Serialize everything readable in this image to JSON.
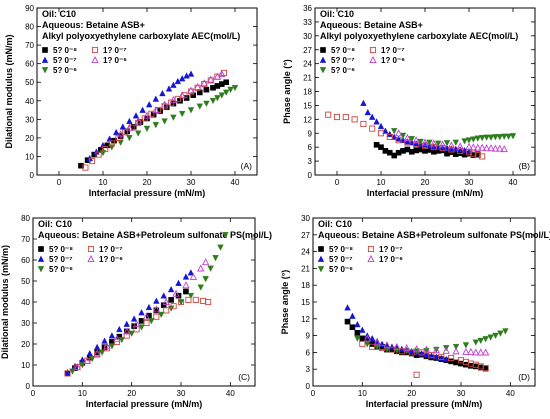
{
  "figure": {
    "colors": {
      "black": "#000000",
      "blue": "#1515d6",
      "green": "#2e7d1c",
      "red": "#d0453f",
      "magenta": "#c040d0"
    }
  },
  "chart_data": [
    {
      "type": "scatter",
      "panel_id": "(A)",
      "xlabel": "Interfacial pressure (mN/m)",
      "ylabel": "Dilational modulus (mN/m)",
      "xlim": [
        -5,
        45
      ],
      "ylim": [
        0,
        90
      ],
      "xticks": [
        0,
        10,
        20,
        30,
        40
      ],
      "yticks": [
        0,
        10,
        20,
        30,
        40,
        50,
        60,
        70,
        80,
        90
      ],
      "annotations": [
        "Oil:  C10",
        "Aqueous: Betaine ASB+",
        "Alkyl polyoxyethylene carboxylate AEC(mol/L)"
      ],
      "legend_placement": "top-left",
      "series": [
        {
          "name": "5? 0⁻⁸",
          "marker": "square",
          "filled": true,
          "color": "#000000",
          "x": [
            5,
            6.5,
            8,
            9.5,
            11,
            12.5,
            14,
            15.5,
            17,
            18.5,
            20,
            21.5,
            23,
            24.5,
            26,
            27.5,
            29,
            30.5,
            32,
            33.5,
            35,
            36,
            37,
            38
          ],
          "y": [
            5,
            8,
            11,
            13.5,
            16,
            18.5,
            21,
            23.5,
            26,
            28.5,
            30.5,
            32.5,
            34.5,
            36.5,
            38.5,
            40,
            41.5,
            43,
            44.5,
            46,
            47,
            48,
            49,
            50
          ]
        },
        {
          "name": "5? 0⁻⁷",
          "marker": "triangle-up",
          "filled": true,
          "color": "#1515d6",
          "x": [
            7,
            8.5,
            10,
            11.5,
            13,
            14.5,
            16,
            17.5,
            19,
            20.5,
            22,
            23.5,
            25,
            26,
            27,
            28,
            29,
            30
          ],
          "y": [
            9,
            12.5,
            16,
            19.5,
            23,
            26,
            29,
            32,
            35,
            38,
            41,
            44,
            46.5,
            48.5,
            50.5,
            52,
            53.5,
            54.5
          ]
        },
        {
          "name": "5? 0⁻⁶",
          "marker": "triangle-down",
          "filled": true,
          "color": "#2e7d1c",
          "x": [
            10,
            12,
            14,
            16,
            18,
            20,
            22,
            24,
            26,
            28,
            30,
            32,
            33.5,
            35,
            36,
            37,
            38,
            39,
            40
          ],
          "y": [
            12,
            15,
            17.5,
            20,
            22.5,
            25,
            27,
            29,
            31,
            33,
            35,
            37,
            38.5,
            40,
            41.5,
            43,
            44.5,
            46,
            47
          ]
        },
        {
          "name": "1? 0⁻⁷",
          "marker": "square",
          "filled": false,
          "color": "#d0453f",
          "x": [
            6,
            7.5,
            9,
            10.5,
            12,
            13.5,
            15,
            16.5,
            18,
            19.5,
            21,
            22.5,
            24,
            25.5,
            27,
            28.5,
            30,
            31.5,
            33,
            34.5,
            36,
            37.5
          ],
          "y": [
            4,
            7.5,
            11,
            14,
            17,
            20,
            23,
            25.5,
            28,
            30.5,
            33,
            35,
            37,
            39,
            41,
            43,
            45,
            47,
            49,
            51,
            53,
            55
          ]
        },
        {
          "name": "1? 0⁻⁶",
          "marker": "triangle-up",
          "filled": false,
          "color": "#c040d0",
          "x": [
            14,
            16,
            18,
            20,
            22,
            24,
            26,
            28,
            30,
            31.5,
            33,
            34.5,
            36,
            37
          ],
          "y": [
            22,
            25.5,
            29,
            32,
            35,
            38,
            40.5,
            43,
            45.5,
            47.5,
            49.5,
            51.5,
            53,
            54.5
          ]
        }
      ]
    },
    {
      "type": "scatter",
      "panel_id": "(B)",
      "xlabel": "Interfacial pressure (mN/m)",
      "ylabel": "Phase angle (°)",
      "xlim": [
        -5,
        45
      ],
      "ylim": [
        0,
        36
      ],
      "xticks": [
        0,
        10,
        20,
        30,
        40
      ],
      "yticks": [
        0,
        3,
        6,
        9,
        12,
        15,
        18,
        21,
        24,
        27,
        30,
        33,
        36
      ],
      "annotations": [
        "Oil:  C10",
        "Aqueous: Betaine ASB+",
        "Alkyl polyoxyethylene carboxylate AEC(mol/L)"
      ],
      "legend_placement": "top-left",
      "series": [
        {
          "name": "5? 0⁻⁸",
          "marker": "square",
          "filled": true,
          "color": "#000000",
          "x": [
            9,
            10,
            11,
            12,
            13,
            14,
            15,
            16,
            17,
            18,
            19,
            20,
            21,
            22,
            23,
            24,
            25,
            26,
            27,
            28,
            29,
            30,
            31,
            32
          ],
          "y": [
            6.5,
            6,
            5.2,
            4.8,
            4.2,
            4.8,
            5.2,
            5.5,
            5,
            5.3,
            5.5,
            5.2,
            5.4,
            5,
            5.2,
            5.3,
            4.6,
            4.9,
            4.5,
            4.7,
            4.4,
            4.6,
            4.3,
            4.5
          ]
        },
        {
          "name": "5? 0⁻⁷",
          "marker": "triangle-up",
          "filled": true,
          "color": "#1515d6",
          "x": [
            6,
            7,
            8,
            9,
            10,
            11,
            12,
            13,
            14,
            15,
            16,
            17,
            18,
            19,
            20,
            21,
            22,
            23,
            24,
            25,
            26,
            27,
            28,
            29,
            30
          ],
          "y": [
            15.5,
            13.5,
            12.5,
            11.5,
            10.5,
            9.5,
            8.8,
            8.2,
            7.8,
            7.5,
            7.2,
            7,
            6.8,
            6.6,
            6.5,
            6.3,
            6.2,
            6,
            5.9,
            5.8,
            5.7,
            5.6,
            5.5,
            5.3,
            5.1
          ]
        },
        {
          "name": "5? 0⁻⁶",
          "marker": "triangle-down",
          "filled": true,
          "color": "#2e7d1c",
          "x": [
            13,
            15,
            17,
            19,
            21,
            23,
            25,
            27,
            29,
            30,
            31,
            32,
            33,
            34,
            35,
            36,
            37,
            38,
            39,
            40
          ],
          "y": [
            9.5,
            8.5,
            7.8,
            7.2,
            7,
            6.8,
            6.9,
            7,
            7.3,
            7.5,
            7.7,
            7.9,
            8,
            8.1,
            8.1,
            8.2,
            8.2,
            8.3,
            8.3,
            8.4
          ]
        },
        {
          "name": "1? 0⁻⁷",
          "marker": "square",
          "filled": false,
          "color": "#d0453f",
          "x": [
            -2,
            0,
            2,
            4,
            6,
            8,
            10,
            12,
            14,
            16,
            18,
            20,
            22,
            24,
            26,
            28,
            30,
            31,
            32,
            33
          ],
          "y": [
            13,
            12.5,
            12.5,
            12,
            11,
            10,
            9,
            8.2,
            7.5,
            7,
            6.6,
            6.3,
            6,
            5.8,
            5.5,
            5.2,
            4.9,
            4.6,
            4.3,
            4
          ]
        },
        {
          "name": "1? 0⁻⁶",
          "marker": "triangle-up",
          "filled": false,
          "color": "#c040d0",
          "x": [
            14,
            16,
            18,
            20,
            22,
            24,
            26,
            28,
            30,
            31,
            32,
            33,
            34,
            35,
            36,
            37,
            38
          ],
          "y": [
            9,
            8,
            7.5,
            7,
            6.8,
            6.6,
            6.4,
            6.2,
            6.1,
            6,
            5.9,
            5.9,
            5.8,
            5.8,
            5.7,
            5.7,
            5.6
          ]
        }
      ]
    },
    {
      "type": "scatter",
      "panel_id": "(C)",
      "xlabel": "Interfacial pressure (mN/m)",
      "ylabel": "Dilational modulus (mN/m)",
      "xlim": [
        0,
        45
      ],
      "ylim": [
        0,
        80
      ],
      "xticks": [
        0,
        10,
        20,
        30,
        40
      ],
      "yticks": [
        0,
        10,
        20,
        30,
        40,
        50,
        60,
        70,
        80
      ],
      "annotations": [
        "Oil:  C10",
        "Aqueous: Betaine ASB+Petroleum sulfonate PS(mol/L)"
      ],
      "legend_placement": "top-left",
      "series": [
        {
          "name": "5? 0⁻⁸",
          "marker": "square",
          "filled": true,
          "color": "#000000",
          "x": [
            7,
            8.5,
            10,
            11.5,
            13,
            14.5,
            16,
            17.5,
            19,
            20.5,
            22,
            23.5,
            25,
            26.5,
            28,
            29.5,
            31
          ],
          "y": [
            6,
            8.5,
            11,
            13.5,
            16,
            18.5,
            21,
            23.5,
            26,
            28.5,
            31,
            33.5,
            36,
            38.5,
            41,
            43,
            45
          ]
        },
        {
          "name": "5? 0⁻⁷",
          "marker": "triangle-up",
          "filled": true,
          "color": "#1515d6",
          "x": [
            7,
            8.5,
            10,
            11.5,
            13,
            14.5,
            16,
            17.5,
            19,
            20.5,
            22,
            23.5,
            25,
            26.5,
            28,
            29.5,
            31,
            32
          ],
          "y": [
            6.5,
            9.5,
            12.5,
            15.5,
            18.5,
            21.5,
            24,
            27,
            29.5,
            32,
            35,
            37.5,
            40.5,
            43,
            46,
            49,
            52,
            54
          ]
        },
        {
          "name": "5? 0⁻⁶",
          "marker": "triangle-down",
          "filled": true,
          "color": "#2e7d1c",
          "x": [
            8,
            10,
            12,
            14,
            16,
            18,
            20,
            22,
            24,
            26,
            28,
            30,
            32,
            34,
            35,
            36,
            37,
            38,
            39
          ],
          "y": [
            7,
            10,
            13,
            16,
            19,
            22,
            25,
            28,
            31,
            34,
            37,
            40,
            43,
            47,
            51,
            56,
            61,
            66,
            72
          ]
        },
        {
          "name": "1? 0⁻⁷",
          "marker": "square",
          "filled": false,
          "color": "#d0453f",
          "x": [
            7,
            9,
            11,
            13,
            15,
            17,
            19,
            21,
            23,
            25,
            27,
            28.5,
            30,
            31.5,
            33,
            34.5,
            35.5
          ],
          "y": [
            6,
            9,
            12,
            15,
            18,
            21,
            24,
            27,
            30,
            33,
            36,
            38,
            40,
            41,
            41,
            40.5,
            40
          ]
        },
        {
          "name": "1? 0⁻⁶",
          "marker": "triangle-up",
          "filled": false,
          "color": "#c040d0",
          "x": [
            9,
            11,
            13,
            15,
            17,
            19,
            21,
            23,
            25,
            27,
            29,
            31,
            32.5,
            34,
            35
          ],
          "y": [
            9,
            12,
            15.5,
            19,
            22.5,
            26,
            29.5,
            33,
            36.5,
            40,
            44,
            48,
            52,
            56,
            59
          ]
        }
      ]
    },
    {
      "type": "scatter",
      "panel_id": "(D)",
      "xlabel": "Interfacial pressure (mN/m)",
      "ylabel": "Phase angle (°)",
      "xlim": [
        0,
        45
      ],
      "ylim": [
        0,
        30
      ],
      "xticks": [
        0,
        10,
        20,
        30,
        40
      ],
      "yticks": [
        0,
        3,
        6,
        9,
        12,
        15,
        18,
        21,
        24,
        27,
        30
      ],
      "annotations": [
        "Oil:  C10",
        "Aqueous: Betaine ASB+Petroleum sulfonate PS(mol/L)"
      ],
      "legend_placement": "top-left",
      "series": [
        {
          "name": "5? 0⁻⁸",
          "marker": "square",
          "filled": true,
          "color": "#000000",
          "x": [
            7,
            8,
            9,
            10,
            11,
            12,
            13,
            14,
            15,
            16,
            17,
            18,
            19,
            20,
            21,
            22,
            23,
            24,
            25,
            26,
            27,
            28,
            29,
            30,
            31,
            32,
            33,
            34,
            35
          ],
          "y": [
            11.5,
            10.5,
            9.5,
            8.5,
            8,
            7.5,
            7,
            7,
            6.5,
            6.5,
            6.2,
            6,
            6,
            5.8,
            5.5,
            5.6,
            5.3,
            5.1,
            5,
            4.8,
            4.6,
            4.4,
            4.2,
            4,
            3.8,
            3.6,
            3.5,
            3.3,
            3.1
          ]
        },
        {
          "name": "5? 0⁻⁷",
          "marker": "triangle-up",
          "filled": true,
          "color": "#1515d6",
          "x": [
            7,
            8,
            9,
            10,
            11,
            12,
            13,
            14,
            15,
            16,
            17,
            18,
            19,
            20,
            21,
            22,
            23,
            24,
            25,
            26,
            27
          ],
          "y": [
            14,
            12.5,
            11,
            10,
            9,
            8.5,
            8,
            7.5,
            7.2,
            7,
            6.8,
            6.6,
            6.4,
            6.2,
            6,
            5.8,
            5.6,
            5.4,
            5.2,
            5,
            4.8
          ]
        },
        {
          "name": "5? 0⁻⁶",
          "marker": "triangle-down",
          "filled": true,
          "color": "#2e7d1c",
          "x": [
            9,
            11,
            13,
            15,
            17,
            19,
            21,
            23,
            25,
            27,
            29,
            31,
            33,
            34,
            35,
            36,
            37,
            38,
            39
          ],
          "y": [
            8.5,
            7.5,
            7,
            6.5,
            6.3,
            6.2,
            6.2,
            6.3,
            6.5,
            6.8,
            7,
            7.3,
            7.8,
            8.1,
            8.4,
            8.7,
            9,
            9.4,
            9.8
          ]
        },
        {
          "name": "1? 0⁻⁷",
          "marker": "square",
          "filled": false,
          "color": "#d0453f",
          "x": [
            10,
            12,
            14,
            16,
            18,
            20,
            21,
            22,
            24,
            26,
            28,
            30,
            31,
            32,
            33,
            34,
            35
          ],
          "y": [
            7.5,
            7,
            6.8,
            6.5,
            6.2,
            6,
            2,
            6,
            5.5,
            5.2,
            5,
            4.6,
            4.3,
            4,
            3.8,
            3.5,
            3.2
          ]
        },
        {
          "name": "1? 0⁻⁶",
          "marker": "triangle-up",
          "filled": false,
          "color": "#c040d0",
          "x": [
            11,
            13,
            15,
            17,
            19,
            21,
            23,
            25,
            27,
            29,
            31,
            32,
            33,
            34,
            35
          ],
          "y": [
            8.5,
            7.8,
            7.3,
            7,
            6.8,
            6.6,
            6.5,
            6.4,
            6.3,
            6.2,
            6.1,
            6.1,
            6,
            6,
            6
          ]
        }
      ]
    }
  ]
}
